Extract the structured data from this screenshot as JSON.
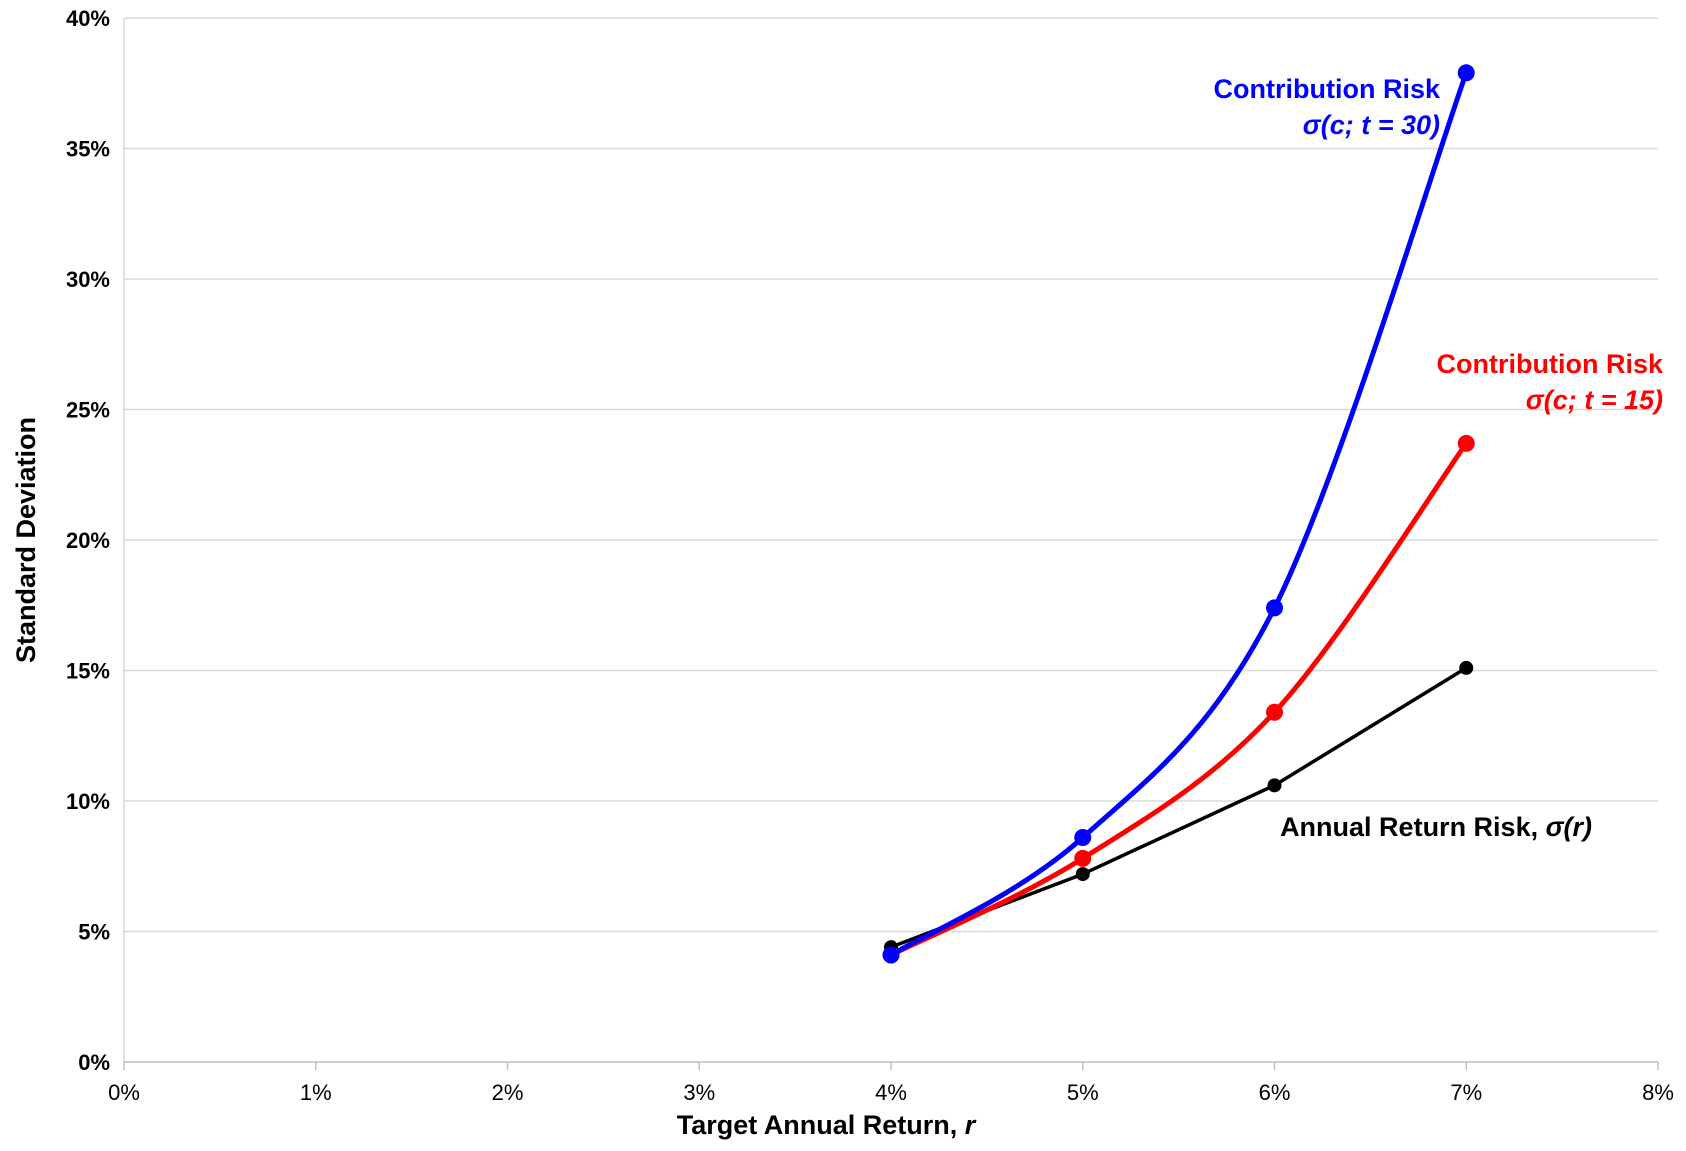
{
  "chart_data": {
    "type": "line",
    "title": "",
    "xlabel": "Target Annual Return, ",
    "xlabel_var": "r",
    "ylabel": "Standard Deviation",
    "xlim": [
      0,
      8
    ],
    "ylim": [
      0,
      40
    ],
    "x_ticks": [
      0,
      1,
      2,
      3,
      4,
      5,
      6,
      7,
      8
    ],
    "x_tick_labels": [
      "0%",
      "1%",
      "2%",
      "3%",
      "4%",
      "5%",
      "6%",
      "7%",
      "8%"
    ],
    "y_ticks": [
      0,
      5,
      10,
      15,
      20,
      25,
      30,
      35,
      40
    ],
    "y_tick_labels": [
      "0%",
      "5%",
      "10%",
      "15%",
      "20%",
      "25%",
      "30%",
      "35%",
      "40%"
    ],
    "grid": "horizontal",
    "legend": "none",
    "series": [
      {
        "id": "annual",
        "color": "#000000",
        "smooth": false,
        "x": [
          4,
          5,
          6,
          7
        ],
        "y": [
          4.4,
          7.2,
          10.6,
          15.1
        ]
      },
      {
        "id": "contrib15",
        "color": "#ff0000",
        "smooth": true,
        "x": [
          4,
          5,
          6,
          7
        ],
        "y": [
          4.1,
          7.8,
          13.4,
          23.7
        ]
      },
      {
        "id": "contrib30",
        "color": "#0000ff",
        "smooth": true,
        "x": [
          4,
          5,
          6,
          7
        ],
        "y": [
          4.1,
          8.6,
          17.4,
          37.9
        ]
      }
    ],
    "annotations": [
      {
        "id": "contrib30",
        "color": "#0000ff",
        "line1": "Contribution Risk",
        "line2": "σ(c; t = 30)"
      },
      {
        "id": "contrib15",
        "color": "#ff0000",
        "line1": "Contribution Risk",
        "line2": "σ(c; t = 15)"
      },
      {
        "id": "annual",
        "color": "#000000",
        "line1": "Annual Return Risk, ",
        "line1_italic": "σ(r)"
      }
    ]
  }
}
